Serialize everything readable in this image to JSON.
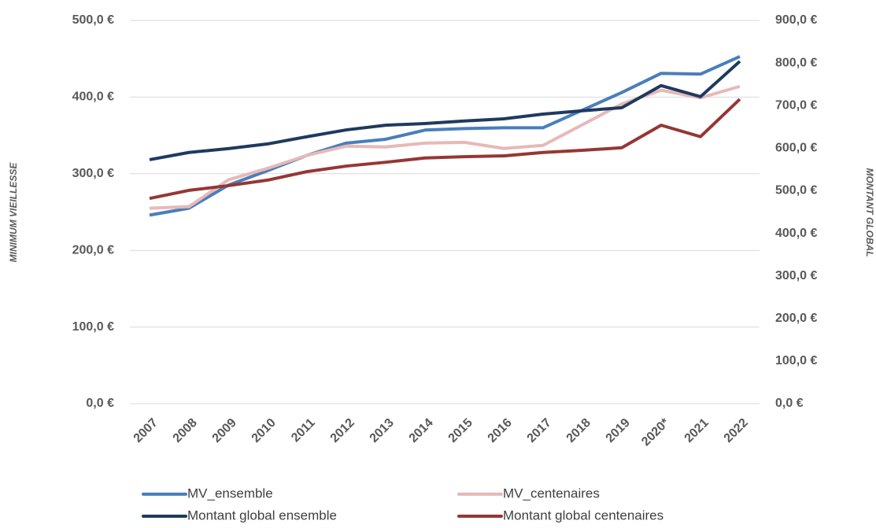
{
  "chart_data": {
    "type": "line",
    "categories": [
      "2007",
      "2008",
      "2009",
      "2010",
      "2011",
      "2012",
      "2013",
      "2014",
      "2015",
      "2016",
      "2017",
      "2018",
      "2019",
      "2020*",
      "2021",
      "2022"
    ],
    "series": [
      {
        "name": "MV_ensemble",
        "color": "#4a7ebb",
        "axis": "y",
        "values": [
          246,
          255,
          285,
          304,
          324,
          340,
          345,
          357,
          359,
          360,
          360,
          383,
          406,
          431,
          430,
          453
        ]
      },
      {
        "name": "MV_centenaires",
        "color": "#e6b9b8",
        "axis": "y",
        "values": [
          255,
          257,
          292,
          307,
          324,
          336,
          335,
          340,
          341,
          333,
          337,
          364,
          391,
          409,
          399,
          414
        ]
      },
      {
        "name": "Montant global ensemble",
        "color": "#1f3a5f",
        "axis": "y2",
        "values": [
          573,
          590,
          599,
          610,
          627,
          643,
          654,
          658,
          664,
          669,
          680,
          688,
          695,
          747,
          721,
          804
        ]
      },
      {
        "name": "Montant global centenaires",
        "color": "#953735",
        "axis": "y2",
        "values": [
          482,
          501,
          512,
          525,
          545,
          558,
          567,
          577,
          580,
          582,
          590,
          595,
          601,
          654,
          627,
          715
        ]
      }
    ],
    "ylabel": "MINIMUM VIEILLESSE",
    "y2label": "MONTANT GLOBAL",
    "ylim": [
      0,
      500
    ],
    "yticks": [
      {
        "value": 0,
        "label": "0,0 €"
      },
      {
        "value": 100,
        "label": "100,0 €"
      },
      {
        "value": 200,
        "label": "200,0 €"
      },
      {
        "value": 300,
        "label": "300,0 €"
      },
      {
        "value": 400,
        "label": "400,0 €"
      },
      {
        "value": 500,
        "label": "500,0 €"
      }
    ],
    "y2lim": [
      0,
      900
    ],
    "y2ticks": [
      {
        "value": 0,
        "label": "0,0 €"
      },
      {
        "value": 100,
        "label": "100,0 €"
      },
      {
        "value": 200,
        "label": "200,0 €"
      },
      {
        "value": 300,
        "label": "300,0 €"
      },
      {
        "value": 400,
        "label": "400,0 €"
      },
      {
        "value": 500,
        "label": "500,0 €"
      },
      {
        "value": 600,
        "label": "600,0 €"
      },
      {
        "value": 700,
        "label": "700,0 €"
      },
      {
        "value": 800,
        "label": "800,0 €"
      },
      {
        "value": 900,
        "label": "900,0 €"
      }
    ],
    "grid": true,
    "legend": "bottom"
  }
}
